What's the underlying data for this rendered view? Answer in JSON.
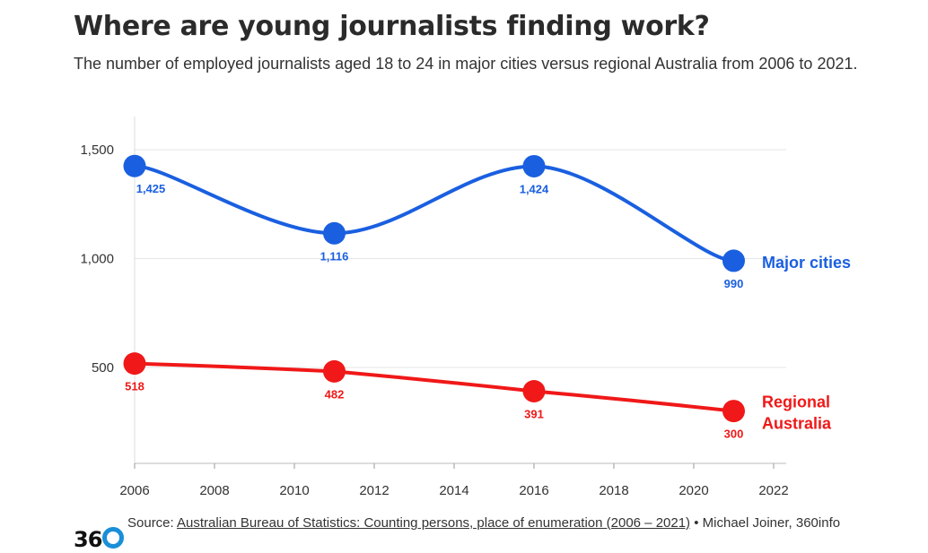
{
  "header": {
    "title": "Where are young journalists finding work?",
    "subtitle": "The number of employed journalists aged 18 to 24 in major cities versus regional Australia from 2006 to 2021."
  },
  "footer": {
    "source_prefix": "Source: ",
    "source_link": "Australian Bureau of Statistics: Counting persons, place of enumeration (2006 – 2021)",
    "source_suffix": " • Michael Joiner, 360info",
    "logo_text": "36"
  },
  "colors": {
    "major_cities": "#1a5fe0",
    "regional": "#f01818",
    "grid": "#e6e6e6",
    "logo_ring": "#1a8fd8"
  },
  "chart_data": {
    "type": "line",
    "x_ticks": [
      2006,
      2008,
      2010,
      2012,
      2014,
      2016,
      2018,
      2020,
      2022
    ],
    "y_ticks": [
      500,
      1000,
      1500
    ],
    "y_tick_labels": [
      "500",
      "1,000",
      "1,500"
    ],
    "xlim": [
      2006,
      2022
    ],
    "ylim": [
      0,
      1600
    ],
    "grid": "horizontal",
    "legend": "direct labels at line ends",
    "series": [
      {
        "name": "Major cities",
        "x": [
          2006,
          2011,
          2016,
          2021
        ],
        "values": [
          1425,
          1116,
          1424,
          990
        ],
        "labels": [
          "1,425",
          "1,116",
          "1,424",
          "990"
        ],
        "color": "#1a5fe0"
      },
      {
        "name": "Regional Australia",
        "name_lines": [
          "Regional",
          "Australia"
        ],
        "x": [
          2006,
          2011,
          2016,
          2021
        ],
        "values": [
          518,
          482,
          391,
          300
        ],
        "labels": [
          "518",
          "482",
          "391",
          "300"
        ],
        "color": "#f01818"
      }
    ]
  }
}
